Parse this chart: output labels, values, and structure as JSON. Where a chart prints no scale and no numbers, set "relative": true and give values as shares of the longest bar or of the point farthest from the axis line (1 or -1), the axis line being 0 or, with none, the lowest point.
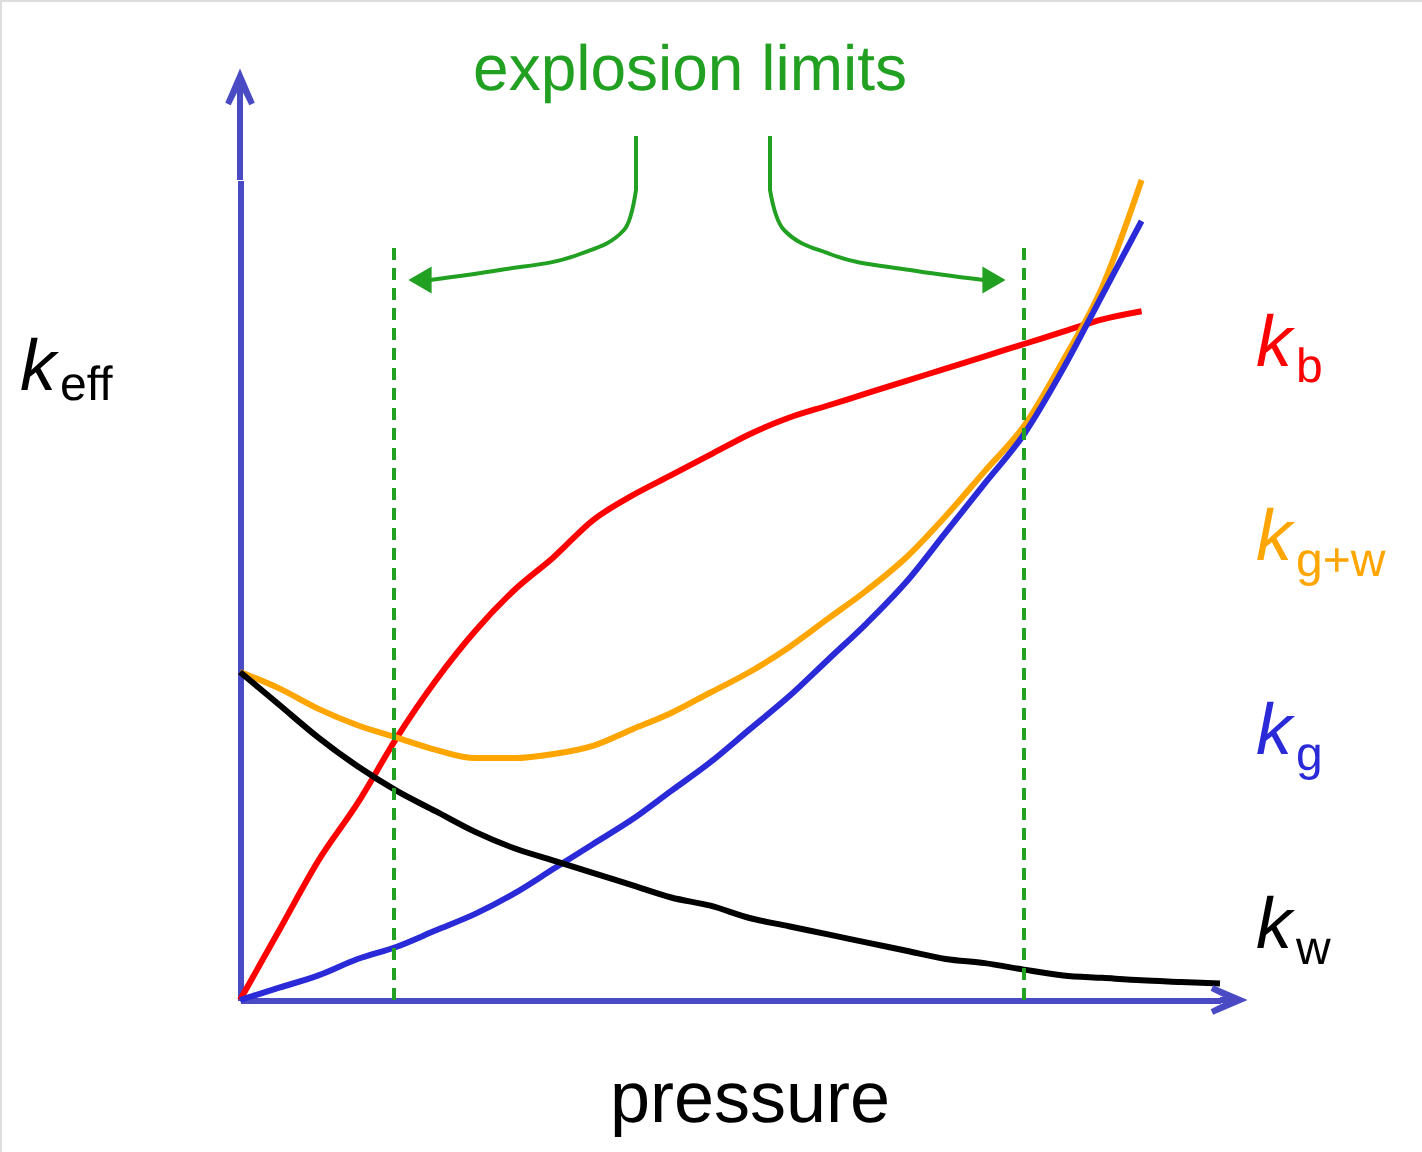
{
  "chart_data": {
    "type": "line",
    "relative": true,
    "xlabel": "pressure",
    "ylabel": "k$_{eff}$",
    "legend": false,
    "categories": [
      null,
      null,
      null,
      null,
      null,
      null,
      null,
      null,
      null,
      null,
      null,
      null,
      null,
      null,
      null,
      null,
      null,
      null,
      null,
      null,
      null,
      null,
      null,
      null,
      null,
      null
    ],
    "series": [
      {
        "name": "k$_{b}$",
        "color": "#ff0000",
        "values": [
          0.0,
          0.085,
          0.17,
          0.24,
          0.32,
          0.39,
          0.45,
          0.5,
          0.54,
          0.585,
          0.615,
          0.64,
          0.665,
          0.69,
          0.71,
          0.725,
          0.74,
          0.755,
          0.77,
          0.785,
          0.8,
          0.815,
          0.83,
          0.84,
          null,
          null
        ]
      },
      {
        "name": "k$_{g+w}$",
        "color": "#ffa500",
        "values": [
          0.4,
          0.38,
          0.355,
          0.335,
          0.32,
          0.305,
          0.295,
          0.295,
          0.3,
          0.31,
          0.33,
          0.35,
          0.375,
          0.4,
          0.43,
          0.465,
          0.5,
          0.54,
          0.59,
          0.645,
          0.7,
          0.78,
          0.87,
          1.0,
          null,
          null
        ]
      },
      {
        "name": "k$_{g}$",
        "color": "#2a2ad8",
        "values": [
          0.0,
          0.015,
          0.03,
          0.05,
          0.065,
          0.085,
          0.105,
          0.13,
          0.16,
          0.19,
          0.22,
          0.255,
          0.29,
          0.33,
          0.37,
          0.415,
          0.46,
          0.51,
          0.57,
          0.63,
          0.69,
          0.77,
          0.86,
          0.95,
          null,
          null
        ]
      },
      {
        "name": "k$_{w}$",
        "color": "#000000",
        "values": [
          0.4,
          0.36,
          0.32,
          0.285,
          0.255,
          0.23,
          0.205,
          0.185,
          0.17,
          0.155,
          0.14,
          0.125,
          0.115,
          0.1,
          0.09,
          0.08,
          0.07,
          0.06,
          0.05,
          0.045,
          0.037,
          0.03,
          0.027,
          0.024,
          0.022,
          0.02
        ]
      }
    ],
    "annotations": [
      "explosion limits"
    ]
  }
}
